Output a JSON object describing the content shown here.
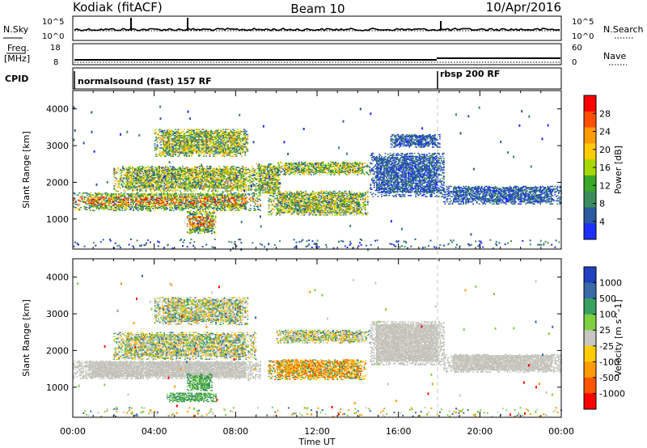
{
  "header": {
    "radar": "Kodiak (fitACF)",
    "beam": "Beam 10",
    "date": "10/Apr/2016"
  },
  "top_panels": {
    "nsky_label": "N.Sky",
    "nsearch_label": "N.Search",
    "nsky_ticks": [
      "10^5",
      "10^0"
    ],
    "nsearch_ticks": [
      "10^5",
      "10^0"
    ],
    "freq_label_1": "Freq.",
    "freq_label_2": "[MHz]",
    "freq_ticks": [
      "18",
      "8"
    ],
    "nave_label": "Nave",
    "nave_ticks": [
      "60",
      "0"
    ],
    "cpid_label": "CPID",
    "cpid_segments": [
      {
        "text": "normalsound (fast) 157 RF",
        "start_hour": 0
      },
      {
        "text": "rbsp 200 RF",
        "start_hour": 18
      }
    ]
  },
  "x_axis": {
    "label": "Time UT",
    "ticks": [
      "00:00",
      "04:00",
      "08:00",
      "12:00",
      "16:00",
      "20:00",
      "00:00"
    ],
    "range_hours": [
      0,
      24
    ]
  },
  "chart_data": [
    {
      "type": "heatmap",
      "panel": "power",
      "ylabel": "Slant Range [km]",
      "yticks": [
        1000,
        2000,
        3000,
        4000
      ],
      "ylim": [
        180,
        4500
      ],
      "colorbar_label": "Power [dB]",
      "colorbar_ticks": [
        "28",
        "24",
        "20",
        "16",
        "12",
        "8",
        "4"
      ],
      "colorbar_colors": [
        "#ff0000",
        "#ff4f00",
        "#ff9a00",
        "#ffcc00",
        "#a8d800",
        "#39a828",
        "#3d8c5c",
        "#2b5aa0",
        "#1e2eff"
      ],
      "echo_regions": [
        {
          "t0": 0.0,
          "t1": 9.2,
          "r0": 1220,
          "r1": 1720,
          "level": "high"
        },
        {
          "t0": 5.6,
          "t1": 7.0,
          "r0": 600,
          "r1": 1200,
          "level": "high"
        },
        {
          "t0": 2.0,
          "t1": 9.0,
          "r0": 1750,
          "r1": 2450,
          "level": "mid"
        },
        {
          "t0": 4.0,
          "t1": 8.6,
          "r0": 2700,
          "r1": 3450,
          "level": "mid"
        },
        {
          "t0": 9.0,
          "t1": 10.2,
          "r0": 1700,
          "r1": 2500,
          "level": "mid"
        },
        {
          "t0": 9.6,
          "t1": 14.5,
          "r0": 1100,
          "r1": 1750,
          "level": "mid"
        },
        {
          "t0": 10.0,
          "t1": 14.6,
          "r0": 2200,
          "r1": 2550,
          "level": "mid"
        },
        {
          "t0": 14.6,
          "t1": 18.2,
          "r0": 1600,
          "r1": 2800,
          "level": "low"
        },
        {
          "t0": 15.6,
          "t1": 18.0,
          "r0": 2950,
          "r1": 3300,
          "level": "low"
        },
        {
          "t0": 18.2,
          "t1": 24.0,
          "r0": 1400,
          "r1": 1900,
          "level": "low"
        }
      ]
    },
    {
      "type": "heatmap",
      "panel": "velocity",
      "ylabel": "Slant Range [km]",
      "yticks": [
        1000,
        2000,
        3000,
        4000
      ],
      "ylim": [
        180,
        4500
      ],
      "colorbar_label": "Velocity [m s^-1]",
      "colorbar_ticks": [
        "1000",
        "500",
        "100",
        "25",
        "-25",
        "-100",
        "-500",
        "-1000"
      ],
      "colorbar_colors": [
        "#2040c0",
        "#3a6aa8",
        "#38a060",
        "#7ed040",
        "#c8c8c0",
        "#ffcc00",
        "#ff9a00",
        "#ff5500",
        "#ff0000"
      ],
      "echo_regions": [
        {
          "t0": 0.0,
          "t1": 9.2,
          "r0": 1220,
          "r1": 1720,
          "vel": "ground"
        },
        {
          "t0": 5.6,
          "t1": 6.8,
          "r0": 900,
          "r1": 1350,
          "vel": "pos"
        },
        {
          "t0": 4.6,
          "t1": 7.0,
          "r0": 600,
          "r1": 850,
          "vel": "pos"
        },
        {
          "t0": 9.6,
          "t1": 14.4,
          "r0": 1200,
          "r1": 1750,
          "vel": "neg"
        },
        {
          "t0": 2.0,
          "t1": 9.0,
          "r0": 1750,
          "r1": 2500,
          "vel": "mixed"
        },
        {
          "t0": 4.0,
          "t1": 8.6,
          "r0": 2700,
          "r1": 3450,
          "vel": "mixed"
        },
        {
          "t0": 10.0,
          "t1": 14.6,
          "r0": 2200,
          "r1": 2550,
          "vel": "mixed"
        },
        {
          "t0": 14.6,
          "t1": 18.2,
          "r0": 1600,
          "r1": 2800,
          "vel": "ground"
        },
        {
          "t0": 18.2,
          "t1": 24.0,
          "r0": 1400,
          "r1": 1900,
          "vel": "ground"
        }
      ]
    }
  ]
}
